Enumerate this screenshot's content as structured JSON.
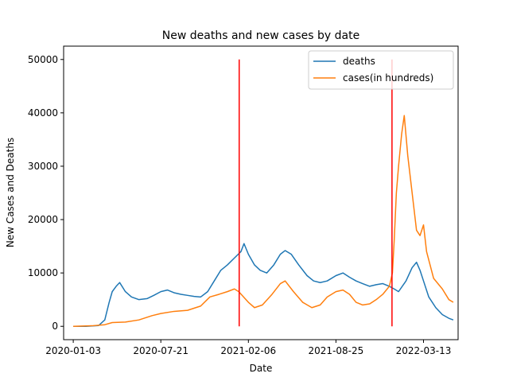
{
  "chart_data": {
    "type": "line",
    "title": "New deaths and new cases by date",
    "xlabel": "Date",
    "ylabel": "New Cases and Deaths",
    "x_ticks": [
      "2020-01-03",
      "2020-07-21",
      "2021-02-06",
      "2021-08-25",
      "2022-03-13"
    ],
    "y_ticks": [
      0,
      10000,
      20000,
      30000,
      40000,
      50000
    ],
    "y_tick_labels": [
      "0",
      "10000",
      "20000",
      "30000",
      "40000",
      "50000"
    ],
    "xlim": [
      "2019-12-12",
      "2022-05-31"
    ],
    "ylim": [
      -2500,
      52500
    ],
    "grid": false,
    "legend_position": "upper right",
    "series": [
      {
        "name": "deaths",
        "color": "#1f77b4",
        "points": [
          [
            "2020-01-03",
            0
          ],
          [
            "2020-02-01",
            0
          ],
          [
            "2020-03-01",
            150
          ],
          [
            "2020-03-15",
            1200
          ],
          [
            "2020-03-25",
            4500
          ],
          [
            "2020-04-01",
            6500
          ],
          [
            "2020-04-10",
            7500
          ],
          [
            "2020-04-18",
            8200
          ],
          [
            "2020-05-01",
            6500
          ],
          [
            "2020-05-15",
            5500
          ],
          [
            "2020-06-01",
            5000
          ],
          [
            "2020-06-20",
            5200
          ],
          [
            "2020-07-05",
            5800
          ],
          [
            "2020-07-21",
            6500
          ],
          [
            "2020-08-05",
            6800
          ],
          [
            "2020-08-20",
            6300
          ],
          [
            "2020-09-05",
            6000
          ],
          [
            "2020-09-20",
            5800
          ],
          [
            "2020-10-05",
            5600
          ],
          [
            "2020-10-20",
            5500
          ],
          [
            "2020-11-05",
            6500
          ],
          [
            "2020-11-20",
            8500
          ],
          [
            "2020-12-05",
            10500
          ],
          [
            "2020-12-20",
            11500
          ],
          [
            "2021-01-05",
            12800
          ],
          [
            "2021-01-20",
            14000
          ],
          [
            "2021-01-27",
            15500
          ],
          [
            "2021-02-06",
            13500
          ],
          [
            "2021-02-20",
            11500
          ],
          [
            "2021-03-05",
            10500
          ],
          [
            "2021-03-20",
            10000
          ],
          [
            "2021-04-05",
            11500
          ],
          [
            "2021-04-20",
            13500
          ],
          [
            "2021-05-01",
            14200
          ],
          [
            "2021-05-15",
            13500
          ],
          [
            "2021-06-01",
            11500
          ],
          [
            "2021-06-20",
            9500
          ],
          [
            "2021-07-05",
            8500
          ],
          [
            "2021-07-20",
            8200
          ],
          [
            "2021-08-05",
            8500
          ],
          [
            "2021-08-25",
            9500
          ],
          [
            "2021-09-10",
            10000
          ],
          [
            "2021-09-25",
            9200
          ],
          [
            "2021-10-10",
            8500
          ],
          [
            "2021-10-25",
            8000
          ],
          [
            "2021-11-10",
            7500
          ],
          [
            "2021-11-25",
            7800
          ],
          [
            "2021-12-10",
            8000
          ],
          [
            "2021-12-25",
            7500
          ],
          [
            "2022-01-05",
            7000
          ],
          [
            "2022-01-15",
            6500
          ],
          [
            "2022-02-01",
            8500
          ],
          [
            "2022-02-15",
            11000
          ],
          [
            "2022-02-25",
            12000
          ],
          [
            "2022-03-05",
            10500
          ],
          [
            "2022-03-13",
            8500
          ],
          [
            "2022-03-25",
            5500
          ],
          [
            "2022-04-10",
            3500
          ],
          [
            "2022-04-25",
            2200
          ],
          [
            "2022-05-10",
            1500
          ],
          [
            "2022-05-20",
            1200
          ]
        ]
      },
      {
        "name": "cases(in hundreds)",
        "color": "#ff7f0e",
        "points": [
          [
            "2020-01-03",
            0
          ],
          [
            "2020-02-15",
            100
          ],
          [
            "2020-03-15",
            300
          ],
          [
            "2020-04-01",
            700
          ],
          [
            "2020-05-01",
            800
          ],
          [
            "2020-06-01",
            1200
          ],
          [
            "2020-07-01",
            2000
          ],
          [
            "2020-07-21",
            2400
          ],
          [
            "2020-08-20",
            2800
          ],
          [
            "2020-09-20",
            3000
          ],
          [
            "2020-10-20",
            3800
          ],
          [
            "2020-11-10",
            5500
          ],
          [
            "2020-12-01",
            6000
          ],
          [
            "2020-12-20",
            6500
          ],
          [
            "2021-01-05",
            7000
          ],
          [
            "2021-01-15",
            6500
          ],
          [
            "2021-02-06",
            4500
          ],
          [
            "2021-02-20",
            3500
          ],
          [
            "2021-03-10",
            4000
          ],
          [
            "2021-04-01",
            6000
          ],
          [
            "2021-04-20",
            8000
          ],
          [
            "2021-05-01",
            8500
          ],
          [
            "2021-05-20",
            6500
          ],
          [
            "2021-06-10",
            4500
          ],
          [
            "2021-07-01",
            3500
          ],
          [
            "2021-07-20",
            4000
          ],
          [
            "2021-08-05",
            5500
          ],
          [
            "2021-08-25",
            6500
          ],
          [
            "2021-09-10",
            6800
          ],
          [
            "2021-09-25",
            6000
          ],
          [
            "2021-10-10",
            4500
          ],
          [
            "2021-10-25",
            4000
          ],
          [
            "2021-11-10",
            4200
          ],
          [
            "2021-11-25",
            5000
          ],
          [
            "2021-12-10",
            6000
          ],
          [
            "2021-12-25",
            7500
          ],
          [
            "2022-01-01",
            10000
          ],
          [
            "2022-01-05",
            16000
          ],
          [
            "2022-01-10",
            25000
          ],
          [
            "2022-01-15",
            30000
          ],
          [
            "2022-01-22",
            36000
          ],
          [
            "2022-01-28",
            39500
          ],
          [
            "2022-02-05",
            32000
          ],
          [
            "2022-02-15",
            25000
          ],
          [
            "2022-02-25",
            18000
          ],
          [
            "2022-03-05",
            17000
          ],
          [
            "2022-03-13",
            19000
          ],
          [
            "2022-03-20",
            14000
          ],
          [
            "2022-04-05",
            9000
          ],
          [
            "2022-04-25",
            7000
          ],
          [
            "2022-05-10",
            5000
          ],
          [
            "2022-05-20",
            4500
          ]
        ]
      }
    ],
    "vertical_lines": [
      {
        "x": "2021-01-16",
        "ymin": 0,
        "ymax": 50000,
        "color": "#ff0000"
      },
      {
        "x": "2021-12-31",
        "ymin": 0,
        "ymax": 50000,
        "color": "#ff0000"
      }
    ]
  }
}
